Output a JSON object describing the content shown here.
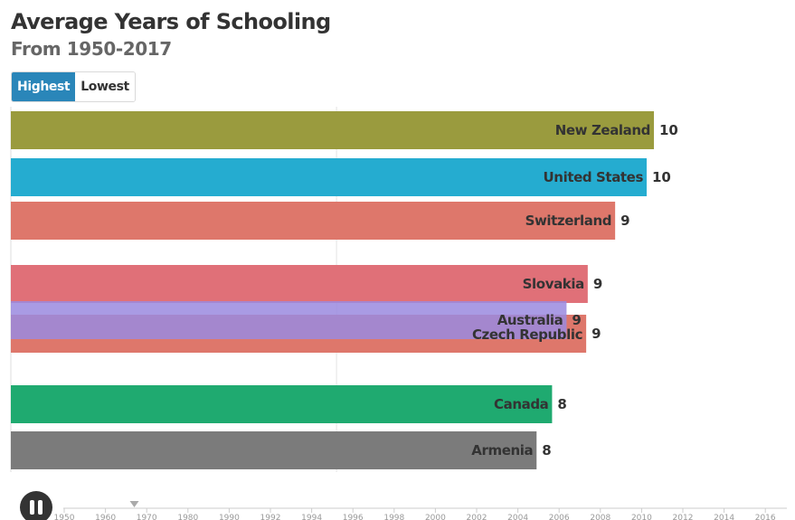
{
  "header": {
    "title": "Average Years of Schooling",
    "subtitle": "From 1950-2017"
  },
  "toggle": {
    "highest_label": "Highest",
    "lowest_label": "Lowest",
    "selected": "Highest"
  },
  "timeline": {
    "ticks": [
      "1950",
      "1960",
      "1970",
      "1980",
      "1990",
      "1992",
      "1994",
      "1996",
      "1998",
      "2000",
      "2002",
      "2004",
      "2006",
      "2008",
      "2010",
      "2012",
      "2014",
      "2016"
    ],
    "current_year": 1967
  },
  "controls": {
    "play_state": "pause-icon"
  },
  "chart_data": {
    "type": "bar",
    "orientation": "horizontal",
    "title": "Average Years of Schooling",
    "subtitle": "From 1950-2017",
    "xlim": [
      0,
      12.3
    ],
    "grid": true,
    "gridline_value": 6.3,
    "bars": [
      {
        "name": "New Zealand",
        "value": 10,
        "display_value": "10",
        "length": 12.44,
        "color": "#9a9b3e"
      },
      {
        "name": "United States",
        "value": 10,
        "display_value": "10",
        "length": 12.3,
        "color": "#25acd0"
      },
      {
        "name": "Switzerland",
        "value": 9,
        "display_value": "9",
        "length": 11.69,
        "color": "#de776b"
      },
      {
        "name": "Slovakia",
        "value": 9,
        "display_value": "9",
        "length": 11.16,
        "color": "#e07078"
      },
      {
        "name": "Czech Republic",
        "value": 9,
        "display_value": "9",
        "length": 11.13,
        "color": "#de776b"
      },
      {
        "name": "Australia",
        "value": 9,
        "display_value": "9",
        "length": 10.75,
        "color": "#9a89df"
      },
      {
        "name": "Canada",
        "value": 8,
        "display_value": "8",
        "length": 10.47,
        "color": "#1faa70"
      },
      {
        "name": "Armenia",
        "value": 8,
        "display_value": "8",
        "length": 10.17,
        "color": "#7b7b7b"
      }
    ]
  }
}
